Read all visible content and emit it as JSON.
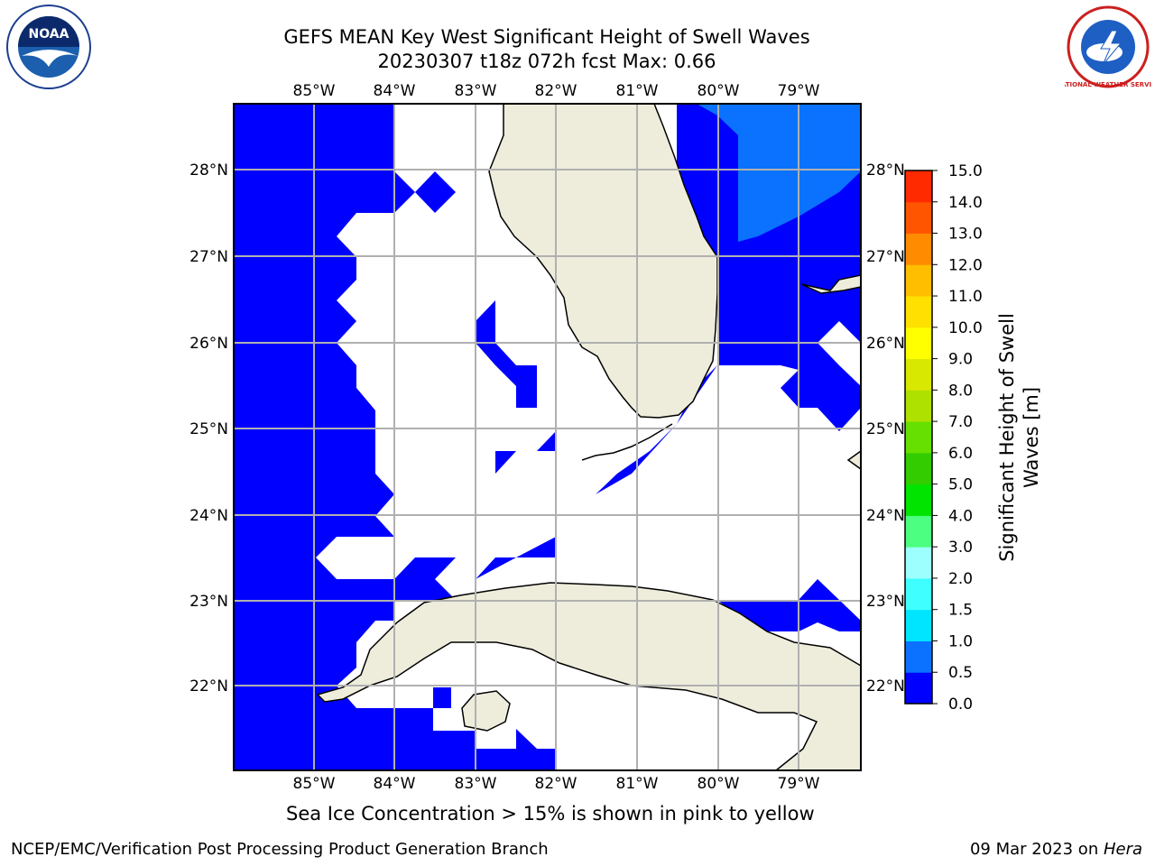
{
  "header": {
    "title_line1": "GEFS MEAN Key West Significant Height of Swell Waves",
    "title_line2": "20230307 t18z 072h fcst   Max: 0.66"
  },
  "logos": {
    "noaa": {
      "name": "noaa-logo",
      "text": "NOAA"
    },
    "nws": {
      "name": "national-weather-service-logo",
      "text": "NATIONAL WEATHER SERVICE"
    }
  },
  "map": {
    "lon_labels": [
      "85°W",
      "84°W",
      "83°W",
      "82°W",
      "81°W",
      "80°W",
      "79°W"
    ],
    "lat_labels_left": [
      "28°N",
      "27°N",
      "26°N",
      "25°N",
      "24°N",
      "23°N",
      "22°N"
    ],
    "lat_labels_right": [
      "28°N",
      "27°N",
      "26°N",
      "25°N",
      "24°N",
      "23°N",
      "22°N"
    ],
    "colors": {
      "wave_low": "#0000ff",
      "wave_mid": "#0a72ff",
      "land": "#eeeddc",
      "ocean_masked": "#ffffff",
      "grid": "#b0b0b0"
    }
  },
  "colorbar": {
    "label_line1": "Significant Height of Swell",
    "label_line2": "Waves [m]",
    "ticks": [
      "0.0",
      "0.5",
      "1.0",
      "1.5",
      "2.0",
      "3.0",
      "4.0",
      "5.0",
      "6.0",
      "7.0",
      "8.0",
      "9.0",
      "10.0",
      "11.0",
      "12.0",
      "13.0",
      "14.0",
      "15.0"
    ],
    "colors": [
      "#0000ff",
      "#0a72ff",
      "#00e5ff",
      "#3fffff",
      "#9effff",
      "#4cff80",
      "#00e400",
      "#33cc00",
      "#66e000",
      "#aee000",
      "#d8e800",
      "#ffff00",
      "#ffe000",
      "#ffbf00",
      "#ff8c00",
      "#ff5500",
      "#ff2a00",
      "#ff0000"
    ]
  },
  "caption": "Sea Ice Concentration > 15% is shown in pink to yellow",
  "footer": {
    "left": "NCEP/EMC/Verification Post Processing Product Generation Branch",
    "date": "09 Mar 2023 on ",
    "machine": "Hera"
  }
}
